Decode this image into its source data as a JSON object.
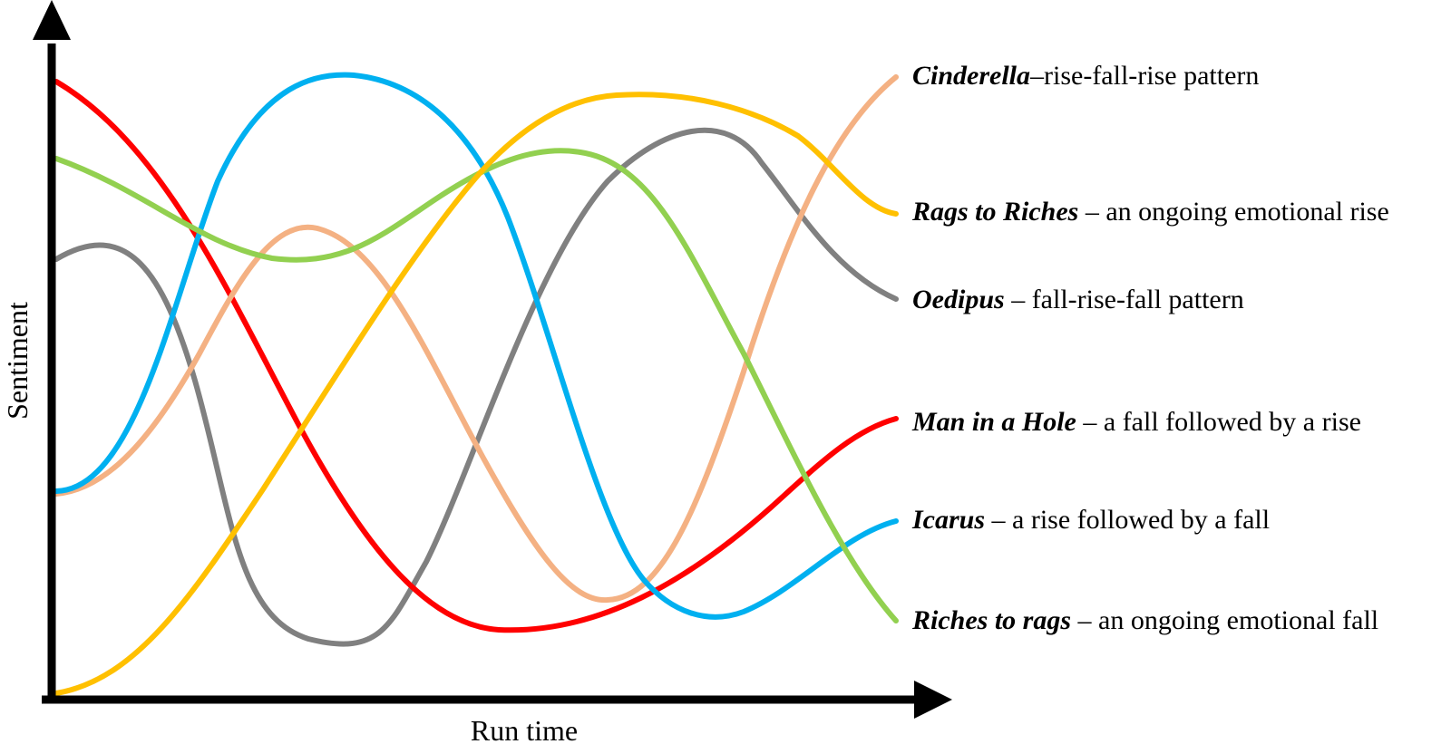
{
  "axes": {
    "x_label": "Run time",
    "y_label": "Sentiment"
  },
  "series": [
    {
      "id": "cinderella",
      "name": "Cinderella",
      "description": "–rise-fall-rise pattern",
      "color": "#F4B183"
    },
    {
      "id": "rags-to-riches",
      "name": "Rags to Riches",
      "description": " – an ongoing emotional rise",
      "color": "#FFC000"
    },
    {
      "id": "oedipus",
      "name": "Oedipus",
      "description": " – fall-rise-fall pattern",
      "color": "#808080"
    },
    {
      "id": "man-in-a-hole",
      "name": "Man in a Hole",
      "description": " – a fall followed by a rise",
      "color": "#FF0000"
    },
    {
      "id": "icarus",
      "name": "Icarus",
      "description": " – a rise followed by a fall",
      "color": "#00B0F0"
    },
    {
      "id": "riches-to-rags",
      "name": "Riches to rags",
      "description": " – an ongoing emotional fall",
      "color": "#92D050"
    }
  ]
}
